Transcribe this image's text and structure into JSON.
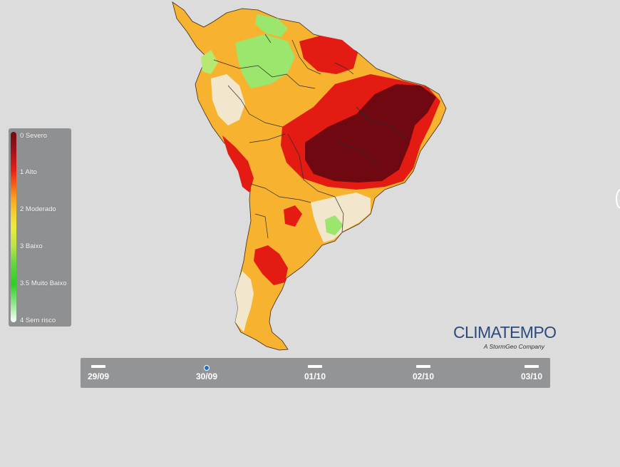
{
  "map": {
    "region": "South America",
    "risk_colors": {
      "severo": "#700811",
      "alto": "#e31b12",
      "moderado": "#f7b22f",
      "baixo": "#9be66c",
      "sem_risco": "#f2e6cc",
      "water": "#dcdcdc",
      "border": "#2a2a2a"
    }
  },
  "legend": {
    "labels": [
      "0 Severo",
      "1 Alto",
      "2 Moderado",
      "3 Baixo",
      "3.5 Muito Baixo",
      "4 Sem risco"
    ]
  },
  "timeline": {
    "dates": [
      "29/09",
      "30/09",
      "01/10",
      "02/10",
      "03/10"
    ],
    "selected_index": 1
  },
  "logo": {
    "name": "CLIMATEMPO",
    "tagline": "A StormGeo Company"
  }
}
